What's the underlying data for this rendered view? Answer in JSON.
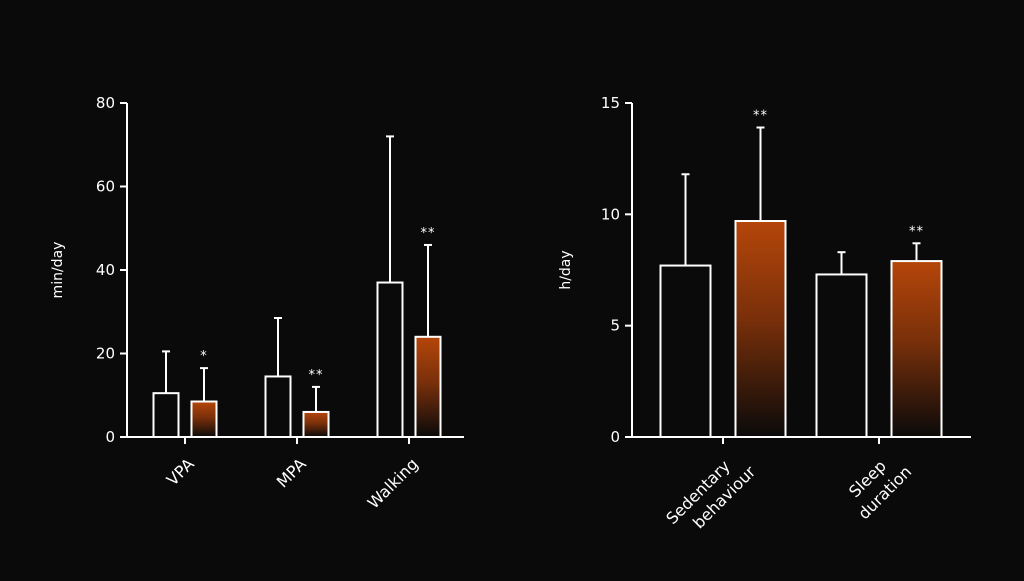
{
  "colors": {
    "background": "#0a0a0a",
    "axis": "#ffffff",
    "bar_empty": "#0a0a0a",
    "bar_gradient_top": "#b5460a",
    "bar_gradient_bottom": "#0a0a0a"
  },
  "chart_data": [
    {
      "type": "bar",
      "ylabel": "min/day",
      "ylim": [
        0,
        80
      ],
      "yticks": [
        "0",
        "20",
        "40",
        "60",
        "80"
      ],
      "categories": [
        "VPA",
        "MPA",
        "Walking"
      ],
      "series": [
        {
          "style": "outline",
          "values": [
            10.5,
            14.5,
            37
          ],
          "errors": [
            20.5,
            28.5,
            72
          ]
        },
        {
          "style": "gradient",
          "values": [
            8.5,
            6,
            24
          ],
          "errors": [
            16.5,
            12,
            46
          ]
        }
      ],
      "significance": [
        "*",
        "**",
        "**"
      ]
    },
    {
      "type": "bar",
      "ylabel": "h/day",
      "ylim": [
        0,
        15
      ],
      "yticks": [
        "0",
        "5",
        "10",
        "15"
      ],
      "categories": [
        "Sedentary behaviour",
        "Sleep duration"
      ],
      "category_lines": [
        [
          "Sedentary",
          "behaviour"
        ],
        [
          "Sleep",
          "duration"
        ]
      ],
      "series": [
        {
          "style": "outline",
          "values": [
            7.7,
            7.3
          ],
          "errors": [
            11.8,
            8.3
          ]
        },
        {
          "style": "gradient",
          "values": [
            9.7,
            7.9
          ],
          "errors": [
            13.9,
            8.7
          ]
        }
      ],
      "significance": [
        "**",
        "**"
      ]
    }
  ]
}
